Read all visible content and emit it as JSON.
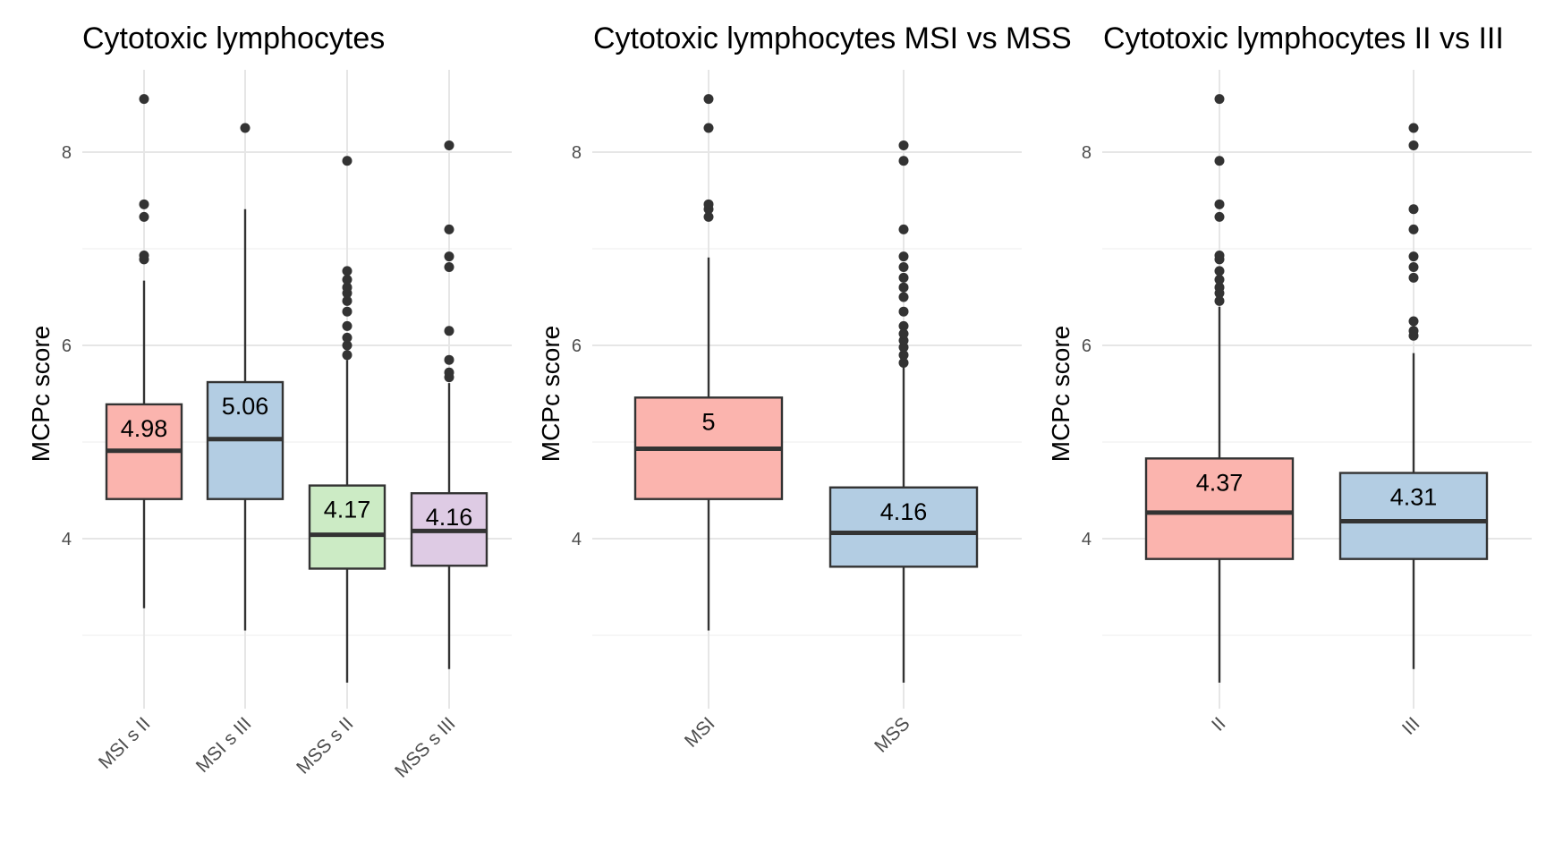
{
  "chart_data": [
    {
      "type": "boxplot",
      "title": "Cytotoxic lymphocytes",
      "ylabel": "MCPc score",
      "ylim": [
        2.2,
        8.9
      ],
      "yticks": [
        4,
        6,
        8
      ],
      "grid": true,
      "categories": [
        "MSI s II",
        "MSI s III",
        "MSS s II",
        "MSS s III"
      ],
      "colors": [
        "#fbb4ae",
        "#b3cde3",
        "#ccebc5",
        "#decbe4"
      ],
      "boxes": [
        {
          "category": "MSI s II",
          "q1": 4.41,
          "median": 4.91,
          "q3": 5.39,
          "whisker_low": 3.28,
          "whisker_high": 6.67,
          "outliers": [
            6.89,
            6.93,
            7.33,
            7.46,
            8.55
          ],
          "label": "4.98"
        },
        {
          "category": "MSI s III",
          "q1": 4.41,
          "median": 5.03,
          "q3": 5.62,
          "whisker_low": 3.05,
          "whisker_high": 7.41,
          "outliers": [
            8.25
          ],
          "label": "5.06"
        },
        {
          "category": "MSS s II",
          "q1": 3.69,
          "median": 4.04,
          "q3": 4.55,
          "whisker_low": 2.51,
          "whisker_high": 5.85,
          "outliers": [
            5.9,
            6.0,
            6.08,
            6.2,
            6.35,
            6.46,
            6.54,
            6.6,
            6.68,
            6.77,
            7.91
          ],
          "label": "4.17"
        },
        {
          "category": "MSS s III",
          "q1": 3.72,
          "median": 4.08,
          "q3": 4.47,
          "whisker_low": 2.65,
          "whisker_high": 5.61,
          "outliers": [
            5.67,
            5.72,
            5.85,
            6.15,
            6.81,
            6.92,
            7.2,
            8.07
          ],
          "label": "4.16"
        }
      ]
    },
    {
      "type": "boxplot",
      "title": "Cytotoxic lymphocytes MSI vs MSS",
      "ylabel": "MCPc score",
      "ylim": [
        2.2,
        8.9
      ],
      "yticks": [
        4,
        6,
        8
      ],
      "grid": true,
      "categories": [
        "MSI",
        "MSS"
      ],
      "colors": [
        "#fbb4ae",
        "#b3cde3"
      ],
      "boxes": [
        {
          "category": "MSI",
          "q1": 4.41,
          "median": 4.93,
          "q3": 5.46,
          "whisker_low": 3.05,
          "whisker_high": 6.91,
          "outliers": [
            7.33,
            7.41,
            7.46,
            8.25,
            8.55
          ],
          "label": "5"
        },
        {
          "category": "MSS",
          "q1": 3.71,
          "median": 4.06,
          "q3": 4.53,
          "whisker_low": 2.51,
          "whisker_high": 5.78,
          "outliers": [
            5.82,
            5.9,
            5.98,
            6.05,
            6.12,
            6.2,
            6.35,
            6.5,
            6.6,
            6.7,
            6.81,
            6.92,
            7.2,
            7.91,
            8.07
          ],
          "label": "4.16"
        }
      ]
    },
    {
      "type": "boxplot",
      "title": "Cytotoxic lymphocytes II vs III",
      "ylabel": "MCPc score",
      "ylim": [
        2.2,
        8.9
      ],
      "yticks": [
        4,
        6,
        8
      ],
      "grid": true,
      "categories": [
        "II",
        "III"
      ],
      "colors": [
        "#fbb4ae",
        "#b3cde3"
      ],
      "boxes": [
        {
          "category": "II",
          "q1": 3.79,
          "median": 4.27,
          "q3": 4.83,
          "whisker_low": 2.51,
          "whisker_high": 6.4,
          "outliers": [
            6.46,
            6.54,
            6.6,
            6.68,
            6.77,
            6.89,
            6.93,
            7.33,
            7.46,
            7.91,
            8.55
          ],
          "label": "4.37"
        },
        {
          "category": "III",
          "q1": 3.79,
          "median": 4.18,
          "q3": 4.68,
          "whisker_low": 2.65,
          "whisker_high": 5.92,
          "outliers": [
            6.1,
            6.15,
            6.25,
            6.7,
            6.81,
            6.92,
            7.2,
            7.41,
            8.07,
            8.25
          ],
          "label": "4.31"
        }
      ]
    }
  ]
}
